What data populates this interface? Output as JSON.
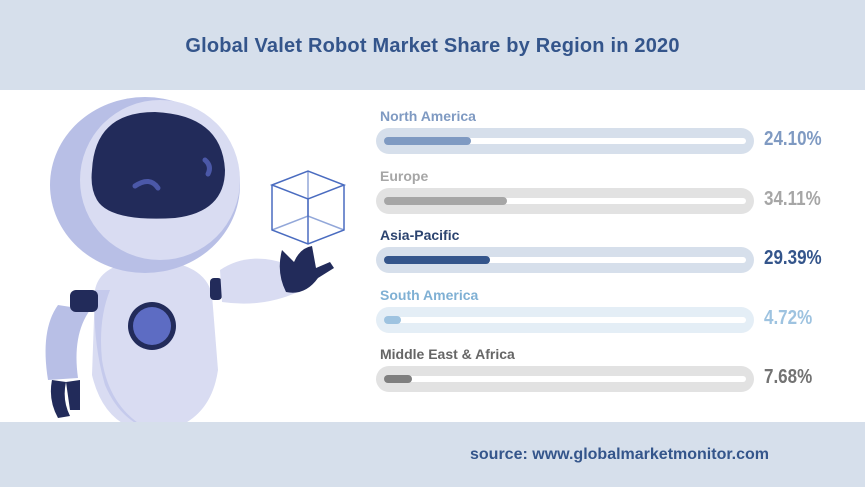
{
  "title": "Global Valet Robot Market Share by Region in 2020",
  "source": "source: www.globalmarketmonitor.com",
  "chart_data": {
    "type": "bar",
    "title": "Global Valet Robot Market Share by Region in 2020",
    "categories": [
      "North America",
      "Europe",
      "Asia-Pacific",
      "South America",
      "Middle East & Africa"
    ],
    "values": [
      24.1,
      34.11,
      29.39,
      4.72,
      7.68
    ],
    "value_labels": [
      "24.10%",
      "34.11%",
      "29.39%",
      "4.72%",
      "7.68%"
    ],
    "unit": "%",
    "xlim": [
      0,
      100
    ],
    "colors": {
      "label": [
        "#7f9ac2",
        "#a6a6a6",
        "#2c4470",
        "#7fb0d4",
        "#666666"
      ],
      "fill": [
        "#7f9ac2",
        "#a6a6a6",
        "#34558b",
        "#9ec3e0",
        "#7f7f7f"
      ],
      "track": [
        "#d6dfeb",
        "#e2e2e2",
        "#d6dfeb",
        "#e4eef6",
        "#e2e2e2"
      ],
      "pct": [
        "#7f9ac2",
        "#a6a6a6",
        "#34558b",
        "#9ec3e0",
        "#737373"
      ]
    },
    "grid": false,
    "legend": "none"
  }
}
